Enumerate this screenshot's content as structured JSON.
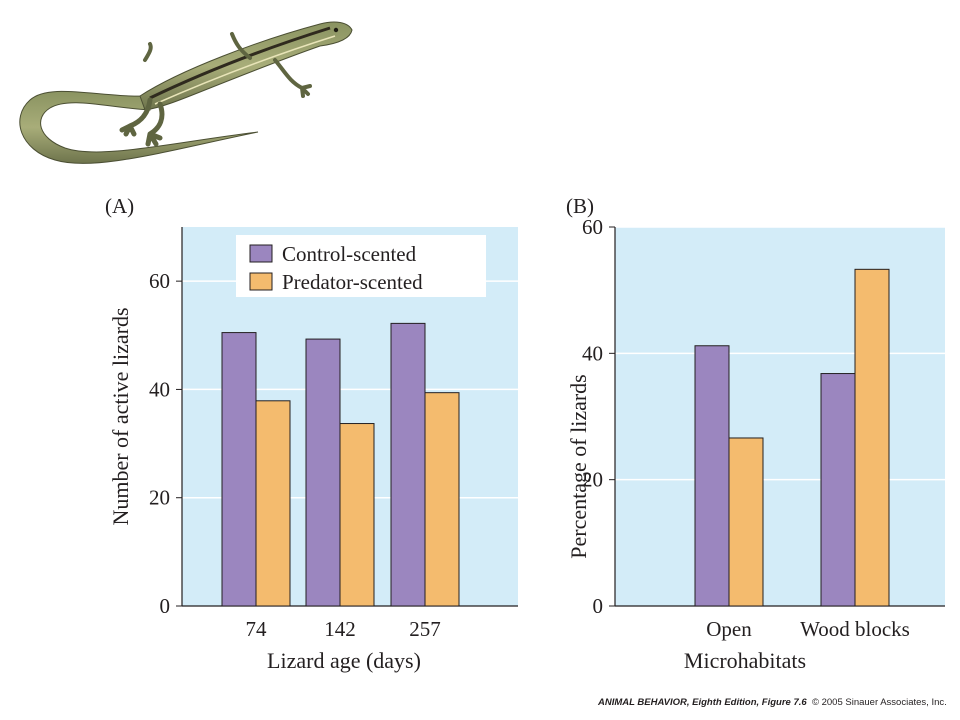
{
  "colors": {
    "background": "#d3ecf8",
    "gridline": "#ffffff",
    "control": "#9b86bf",
    "predator": "#f4bb6e",
    "outline": "#231f20",
    "legend_bg": "#ffffff"
  },
  "illustration": {
    "name": "lizard-illustration"
  },
  "chart_data": [
    {
      "panel_label": "(A)",
      "type": "bar",
      "categories": [
        "74",
        "142",
        "257"
      ],
      "series": [
        {
          "name": "Control-scented",
          "values": [
            50.5,
            49.3,
            52.2
          ]
        },
        {
          "name": "Predator-scented",
          "values": [
            37.9,
            33.7,
            39.4
          ]
        }
      ],
      "xlabel": "Lizard age (days)",
      "ylabel": "Number of active lizards",
      "ylim": [
        0,
        70
      ],
      "yticks": [
        0,
        20,
        40,
        60
      ],
      "grid": true,
      "legend": {
        "placement": "top",
        "entries": [
          "Control-scented",
          "Predator-scented"
        ]
      }
    },
    {
      "panel_label": "(B)",
      "type": "bar",
      "categories": [
        "Open",
        "Wood blocks"
      ],
      "series": [
        {
          "name": "Control-scented",
          "values": [
            41.2,
            36.8
          ]
        },
        {
          "name": "Predator-scented",
          "values": [
            26.6,
            53.3
          ]
        }
      ],
      "xlabel": "Microhabitats",
      "ylabel": "Percentage of lizards",
      "ylim": [
        0,
        60
      ],
      "yticks": [
        0,
        20,
        40,
        60
      ],
      "grid": true
    }
  ],
  "credit": {
    "title": "ANIMAL BEHAVIOR",
    "edition": ", Eighth Edition",
    "figure": ", Figure 7.6",
    "copyright": "© 2005 Sinauer Associates, Inc."
  }
}
